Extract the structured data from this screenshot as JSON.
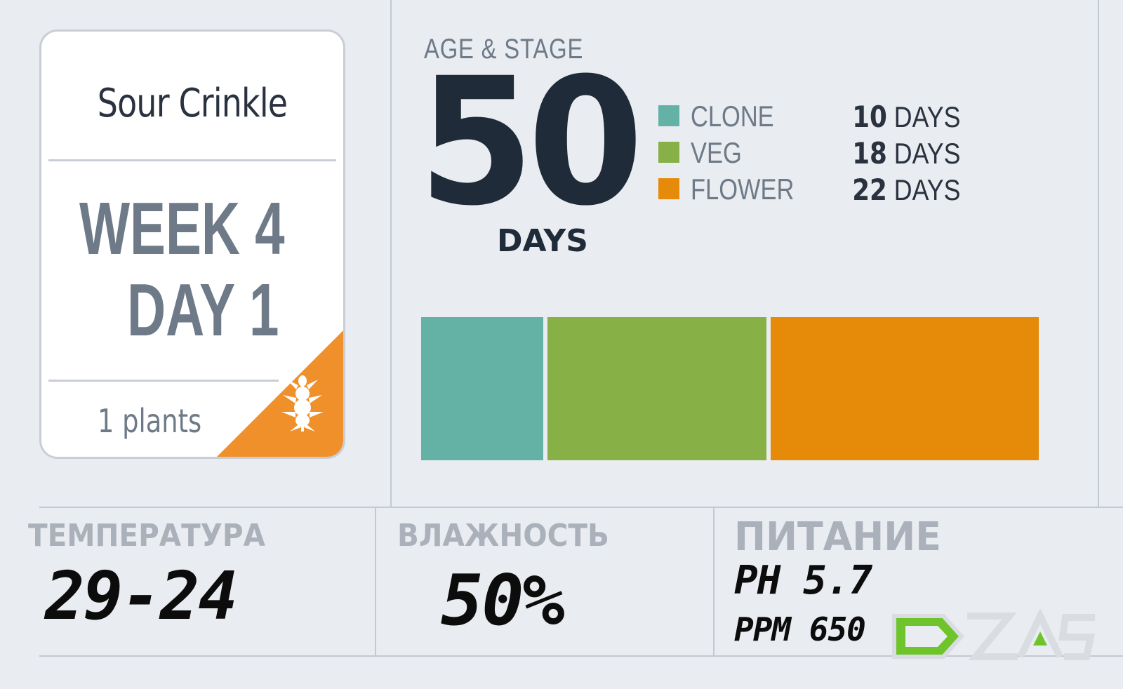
{
  "card": {
    "strain": "Sour Crinkle",
    "week": "WEEK 4",
    "day": "DAY 1",
    "plants": "1 plants",
    "accent": "#f0902a"
  },
  "age": {
    "label": "AGE & STAGE",
    "total": "50",
    "total_unit": "DAYS",
    "stages": [
      {
        "name": "CLONE",
        "num": "10",
        "unit": " DAYS",
        "days": 10,
        "color": "#64b2a6"
      },
      {
        "name": "VEG",
        "num": "18",
        "unit": " DAYS",
        "days": 18,
        "color": "#87b046"
      },
      {
        "name": "FLOWER",
        "num": "22",
        "unit": " DAYS",
        "days": 22,
        "color": "#e68a0a"
      }
    ]
  },
  "stats": {
    "temperature": {
      "title": "ТЕМПЕРАТУРА",
      "value": "29-24"
    },
    "humidity": {
      "title": "ВЛАЖНОСТЬ",
      "value": "50%"
    },
    "nutrition": {
      "title": "ПИТАНИЕ",
      "ph": "PH 5.7",
      "ppm": "PPM 650"
    }
  },
  "logo": {
    "name": "brand-logo",
    "accent": "#6fc42c"
  }
}
